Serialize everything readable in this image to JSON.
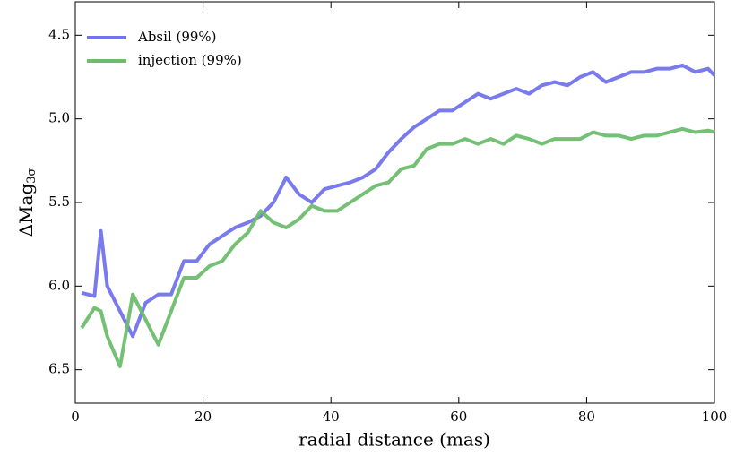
{
  "chart_data": {
    "type": "line",
    "x_label": "radial distance (mas)",
    "y_label": {
      "main": "ΔMag",
      "sub": "3σ"
    },
    "x": [
      1,
      3,
      4,
      5,
      7,
      9,
      11,
      13,
      15,
      17,
      19,
      21,
      23,
      25,
      27,
      29,
      31,
      33,
      35,
      37,
      39,
      41,
      43,
      45,
      47,
      49,
      51,
      53,
      55,
      57,
      59,
      61,
      63,
      65,
      67,
      69,
      71,
      73,
      75,
      77,
      79,
      81,
      83,
      85,
      87,
      89,
      91,
      93,
      95,
      97,
      99,
      100
    ],
    "series": [
      {
        "name": "Absil (99%)",
        "color": "#7373ee",
        "values": [
          6.04,
          6.06,
          5.67,
          6.0,
          6.15,
          6.3,
          6.1,
          6.05,
          6.05,
          5.85,
          5.85,
          5.75,
          5.7,
          5.65,
          5.62,
          5.58,
          5.5,
          5.35,
          5.45,
          5.5,
          5.42,
          5.4,
          5.38,
          5.35,
          5.3,
          5.2,
          5.12,
          5.05,
          5.0,
          4.95,
          4.95,
          4.9,
          4.85,
          4.88,
          4.85,
          4.82,
          4.85,
          4.8,
          4.78,
          4.8,
          4.75,
          4.72,
          4.78,
          4.75,
          4.72,
          4.72,
          4.7,
          4.7,
          4.68,
          4.72,
          4.7,
          4.74
        ]
      },
      {
        "name": "injection (99%)",
        "color": "#6dbd6d",
        "values": [
          6.25,
          6.13,
          6.15,
          6.3,
          6.48,
          6.05,
          6.2,
          6.35,
          6.15,
          5.95,
          5.95,
          5.88,
          5.85,
          5.75,
          5.68,
          5.55,
          5.62,
          5.65,
          5.6,
          5.52,
          5.55,
          5.55,
          5.5,
          5.45,
          5.4,
          5.38,
          5.3,
          5.28,
          5.18,
          5.15,
          5.15,
          5.12,
          5.15,
          5.12,
          5.15,
          5.1,
          5.12,
          5.15,
          5.12,
          5.12,
          5.12,
          5.08,
          5.1,
          5.1,
          5.12,
          5.1,
          5.1,
          5.08,
          5.06,
          5.08,
          5.07,
          5.08
        ]
      }
    ],
    "xlim": [
      0,
      100
    ],
    "xticks": [
      0,
      20,
      40,
      60,
      80,
      100
    ],
    "ylim": [
      6.7,
      4.3
    ],
    "yticks": [
      4.5,
      {
        "value": 5,
        "label": "5.0"
      },
      5.5,
      {
        "value": 6,
        "label": "6.0"
      },
      6.5
    ],
    "legend": "upper left"
  }
}
